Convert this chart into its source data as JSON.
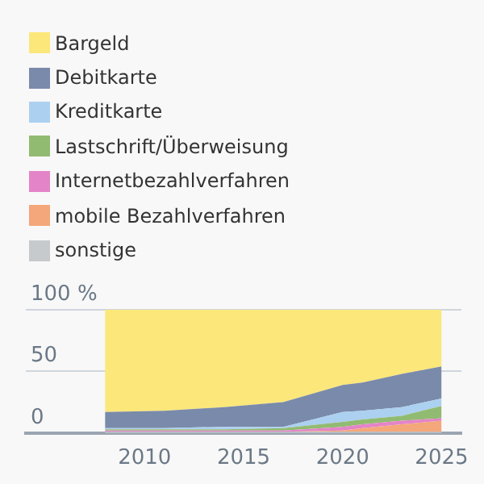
{
  "chart_data": {
    "type": "area",
    "stacked": true,
    "x": [
      2008,
      2011,
      2014,
      2017,
      2020,
      2021,
      2023,
      2025
    ],
    "xlim": [
      2004,
      2026
    ],
    "xticks": [
      2010,
      2015,
      2020,
      2025
    ],
    "ylim": [
      0,
      100
    ],
    "yticks": [
      0,
      50,
      {
        "value": 100,
        "label": "100 %"
      }
    ],
    "grid": "y",
    "legend": "top left",
    "series": [
      {
        "name": "sonstige",
        "color": "#c6cacc",
        "values": [
          1,
          1,
          1,
          1,
          1,
          1,
          1,
          1
        ]
      },
      {
        "name": "mobile Bezahlverfahren",
        "color": "#f4a77a",
        "values": [
          0,
          0,
          0,
          0,
          1,
          3,
          6,
          9
        ]
      },
      {
        "name": "Internetbezahlverfahren",
        "color": "#e484c8",
        "values": [
          1,
          1,
          1,
          1,
          3,
          3,
          3,
          2
        ]
      },
      {
        "name": "Lastschrift/Überweisung",
        "color": "#92bb72",
        "values": [
          1,
          1,
          1,
          2,
          4,
          4,
          4,
          10
        ]
      },
      {
        "name": "Kreditkarte",
        "color": "#acd0f0",
        "values": [
          1,
          1,
          2,
          1,
          8,
          7,
          7,
          6
        ]
      },
      {
        "name": "Debitkarte",
        "color": "#7a8aaa",
        "values": [
          13,
          14,
          16,
          20,
          22,
          23,
          27,
          26
        ]
      },
      {
        "name": "Bargeld",
        "color": "#fbe77a",
        "values": [
          83,
          82,
          79,
          75,
          61,
          59,
          52,
          46
        ]
      }
    ]
  }
}
